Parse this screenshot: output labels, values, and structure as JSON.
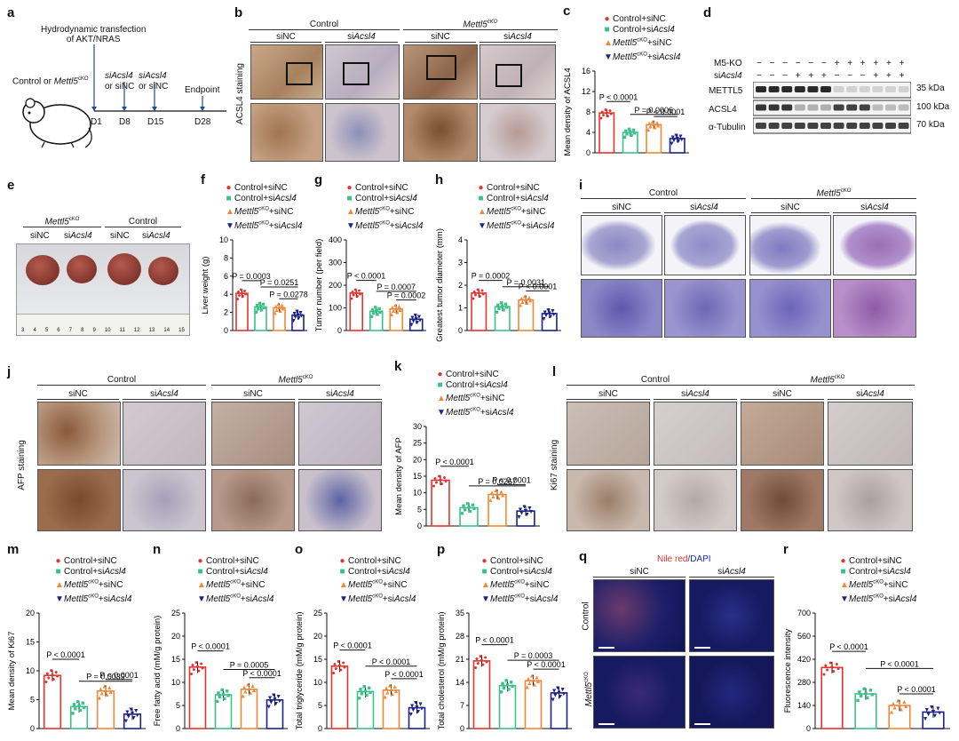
{
  "panels": {
    "a": {
      "label": "a",
      "title": "Hydrodynamic transfection\nof AKT/NRAS",
      "group": "Control or Mettl5cKO",
      "t1": "siAcsl4\nor siNC",
      "t2": "siAcsl4\nor siNC",
      "endpoint": "Endpoint",
      "days": [
        "D1",
        "D8",
        "D15",
        "D28"
      ]
    },
    "b": {
      "label": "b",
      "groups": [
        "Control",
        "Mettl5cKO"
      ],
      "subs": [
        "siNC",
        "siAcsl4",
        "siNC",
        "siAcsl4"
      ],
      "ylab": "ACSL4 staining"
    },
    "d": {
      "label": "d",
      "row1": "M5-KO",
      "row2": "siAcsl4",
      "r1": [
        "−",
        "−",
        "−",
        "−",
        "−",
        "−",
        "+",
        "+",
        "+",
        "+",
        "+",
        "+"
      ],
      "r2": [
        "−",
        "−",
        "−",
        "+",
        "+",
        "+",
        "−",
        "−",
        "−",
        "+",
        "+",
        "+"
      ],
      "bands": [
        "METTL5",
        "ACSL4",
        "α-Tubulin"
      ],
      "kda": [
        "35 kDa",
        "100 kDa",
        "70 kDa"
      ]
    },
    "e": {
      "label": "e",
      "groups": [
        "Mettl5cKO",
        "Control"
      ],
      "subs": [
        "siNC",
        "siAcsl4",
        "siNC",
        "siAcsl4"
      ],
      "ruler": [
        "3",
        "4",
        "5",
        "6",
        "7",
        "8",
        "9",
        "10",
        "11",
        "12",
        "13",
        "14",
        "15"
      ]
    },
    "i": {
      "label": "i",
      "groups": [
        "Control",
        "Mettl5cKO"
      ],
      "subs": [
        "siNC",
        "siAcsl4",
        "siNC",
        "siAcsl4"
      ]
    },
    "j": {
      "label": "j",
      "groups": [
        "Control",
        "Mettl5cKO"
      ],
      "subs": [
        "siNC",
        "siAcsl4",
        "siNC",
        "siAcsl4"
      ],
      "ylab": "AFP staining"
    },
    "l": {
      "label": "l",
      "groups": [
        "Control",
        "Mettl5cKO"
      ],
      "subs": [
        "siNC",
        "siAcsl4",
        "siNC",
        "siAcsl4"
      ],
      "ylab": "Ki67 staining"
    },
    "q": {
      "label": "q",
      "title_red": "Nile red",
      "title_blue": "/DAPI",
      "cols": [
        "siNC",
        "siAcsl4"
      ],
      "rows": [
        "Control",
        "Mettl5cKO"
      ]
    }
  },
  "legend": [
    "Control+siNC",
    "Control+siAcsl4",
    "Mettl5cKO+siNC",
    "Mettl5cKO+siAcsl4"
  ],
  "colors": {
    "g1": "#e8322e",
    "g2": "#3cc18a",
    "g3": "#f0883a",
    "g4": "#1a2288"
  },
  "chart_data": [
    {
      "id": "c",
      "type": "bar",
      "ylabel": "Mean density of ACSL4",
      "ylim": [
        0,
        16
      ],
      "yticks": [
        0,
        4,
        8,
        12,
        16
      ],
      "values": [
        7.8,
        4.0,
        5.5,
        2.8
      ],
      "pvals": [
        "P < 0.0001",
        "P = 0.0006",
        "P < 0.0001"
      ]
    },
    {
      "id": "f",
      "type": "bar",
      "ylabel": "Liver weight (g)",
      "ylim": [
        0,
        10
      ],
      "yticks": [
        0,
        2,
        4,
        6,
        8,
        10
      ],
      "values": [
        4.1,
        2.6,
        2.5,
        1.7
      ],
      "pvals": [
        "P = 0.0003",
        "P = 0.0251",
        "P = 0.0278"
      ]
    },
    {
      "id": "g",
      "type": "bar",
      "ylabel": "Tumor number (per field)",
      "ylim": [
        0,
        400
      ],
      "yticks": [
        0,
        100,
        200,
        300,
        400
      ],
      "values": [
        165,
        85,
        95,
        50
      ],
      "pvals": [
        "P < 0.0001",
        "P = 0.0007",
        "P = 0.0002"
      ]
    },
    {
      "id": "h",
      "type": "bar",
      "ylabel": "Greatest tumor diameter (mm)",
      "ylim": [
        0,
        4
      ],
      "yticks": [
        0,
        1,
        2,
        3,
        4
      ],
      "values": [
        1.65,
        1.05,
        1.35,
        0.75
      ],
      "pvals": [
        "P = 0.0002",
        "P = 0.0031",
        "P < 0.0001"
      ]
    },
    {
      "id": "k",
      "type": "bar",
      "ylabel": "Mean density of AFP",
      "ylim": [
        0,
        30
      ],
      "yticks": [
        0,
        5,
        10,
        15,
        20,
        25,
        30
      ],
      "values": [
        13.8,
        5.5,
        9.5,
        4.5
      ],
      "pvals": [
        "P < 0.0001",
        "P = 0.0267",
        "P < 0.0001"
      ]
    },
    {
      "id": "m",
      "type": "bar",
      "ylabel": "Mean density of Ki67",
      "ylim": [
        0,
        20
      ],
      "yticks": [
        0,
        5,
        10,
        15,
        20
      ],
      "values": [
        9.2,
        3.8,
        6.5,
        2.5
      ],
      "pvals": [
        "P < 0.0001",
        "P = 0.0039",
        "P < 0.0001"
      ]
    },
    {
      "id": "n",
      "type": "bar",
      "ylabel": "Free fatty acid (mM/g protein)",
      "ylim": [
        0,
        25
      ],
      "yticks": [
        0,
        5,
        10,
        15,
        20,
        25
      ],
      "values": [
        13.3,
        7.3,
        8.5,
        6.2
      ],
      "pvals": [
        "P < 0.0001",
        "P = 0.0005",
        "P < 0.0001"
      ]
    },
    {
      "id": "o",
      "type": "bar",
      "ylabel": "Total triglyceride (mM/g protein)",
      "ylim": [
        0,
        25
      ],
      "yticks": [
        0,
        5,
        10,
        15,
        20,
        25
      ],
      "values": [
        13.5,
        8.0,
        8.3,
        4.5
      ],
      "pvals": [
        "P < 0.0001",
        "P < 0.0001",
        "P < 0.0001"
      ]
    },
    {
      "id": "p",
      "type": "bar",
      "ylabel": "Total cholesterol (mM/g protein)",
      "ylim": [
        0,
        35
      ],
      "yticks": [
        0,
        7,
        14,
        21,
        28,
        35
      ],
      "values": [
        20.5,
        13.0,
        14.5,
        10.8
      ],
      "pvals": [
        "P < 0.0001",
        "P = 0.0003",
        "P < 0.0001"
      ]
    },
    {
      "id": "r",
      "type": "bar",
      "ylabel": "Fluorescence intensity",
      "ylim": [
        0,
        700
      ],
      "yticks": [
        0,
        140,
        280,
        420,
        560,
        700
      ],
      "values": [
        370,
        210,
        140,
        100
      ],
      "pvals": [
        "P < 0.0001",
        "P < 0.0001",
        "P < 0.0001"
      ]
    }
  ]
}
